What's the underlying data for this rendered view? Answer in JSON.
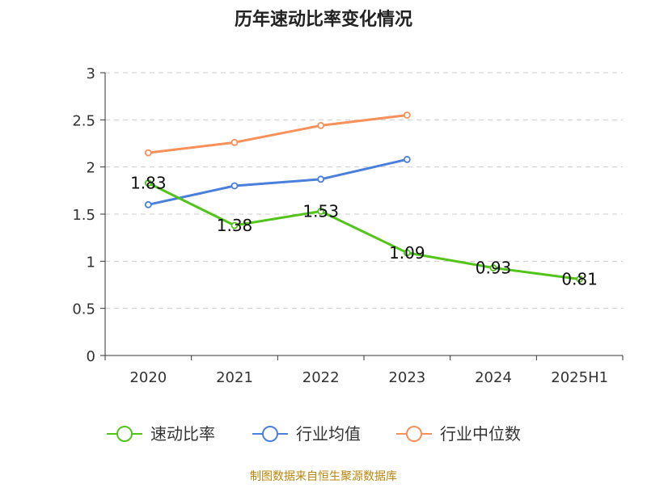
{
  "chart_data": {
    "type": "line",
    "title": "历年速动比率变化情况",
    "categories": [
      "2020",
      "2021",
      "2022",
      "2023",
      "2024",
      "2025H1"
    ],
    "ylim": [
      0,
      3
    ],
    "yticks": [
      "0",
      "0.5",
      "1",
      "1.5",
      "2",
      "2.5",
      "3"
    ],
    "grid": true,
    "legend_position": "bottom",
    "series": [
      {
        "name": "速动比率",
        "color": "#52c41a",
        "values": [
          1.83,
          1.38,
          1.53,
          1.09,
          0.93,
          0.81
        ],
        "labels": [
          "1.83",
          "1.38",
          "1.53",
          "1.09",
          "0.93",
          "0.81"
        ]
      },
      {
        "name": "行业均值",
        "color": "#4a7fdb",
        "values": [
          1.6,
          1.8,
          1.87,
          2.08,
          null,
          null
        ]
      },
      {
        "name": "行业中位数",
        "color": "#f7905a",
        "values": [
          2.15,
          2.26,
          2.44,
          2.55,
          null,
          null
        ]
      }
    ]
  },
  "footer": {
    "source": "制图数据来自恒生聚源数据库",
    "source_color": "#b8860b"
  }
}
